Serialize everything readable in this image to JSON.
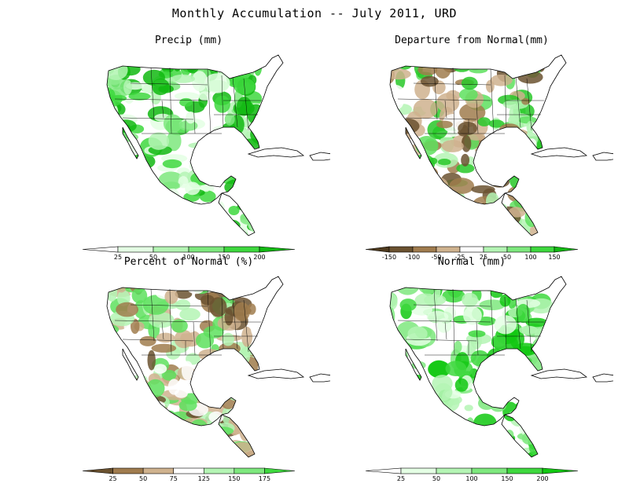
{
  "title": "Monthly Accumulation -- July 2011, URD",
  "panels": [
    {
      "id": "precip",
      "title": "Precip (mm)",
      "palette": [
        "#e4ffe4",
        "#b4f4b4",
        "#7ee87e",
        "#3ed83e",
        "#12b812"
      ],
      "colorbar": {
        "ticks": [
          "25",
          "50",
          "100",
          "150",
          "200"
        ],
        "colors": [
          "#ffffff",
          "#e4ffe4",
          "#b4f4b4",
          "#7ee87e",
          "#3ed83e",
          "#12b812"
        ]
      }
    },
    {
      "id": "departure",
      "title": "Departure from Normal(mm)",
      "palette": [
        "#6b5230",
        "#a07c4e",
        "#cfb28e",
        "#ffffff",
        "#b4f4b4",
        "#5ee05e",
        "#28c828"
      ],
      "colorbar": {
        "ticks": [
          "-150",
          "-100",
          "-50",
          "-25",
          "25",
          "50",
          "100",
          "150"
        ],
        "colors": [
          "#4e3a1e",
          "#6b5230",
          "#a07c4e",
          "#cfb28e",
          "#ffffff",
          "#b4f4b4",
          "#7ee87e",
          "#3ed83e",
          "#12b812"
        ]
      }
    },
    {
      "id": "percent",
      "title": "Percent of Normal (%)",
      "palette": [
        "#6b5230",
        "#a07c4e",
        "#cfb28e",
        "#ffffff",
        "#b4f4b4",
        "#5ee05e"
      ],
      "colorbar": {
        "ticks": [
          "25",
          "50",
          "75",
          "125",
          "150",
          "175"
        ],
        "colors": [
          "#6b5230",
          "#a07c4e",
          "#cfb28e",
          "#ffffff",
          "#b4f4b4",
          "#7ee87e",
          "#3ed83e"
        ]
      }
    },
    {
      "id": "normal",
      "title": "Normal (mm)",
      "palette": [
        "#e4ffe4",
        "#b4f4b4",
        "#7ee87e",
        "#3ed83e",
        "#12c812"
      ],
      "colorbar": {
        "ticks": [
          "25",
          "50",
          "100",
          "150",
          "200"
        ],
        "colors": [
          "#ffffff",
          "#e4ffe4",
          "#b4f4b4",
          "#7ee87e",
          "#3ed83e",
          "#12c812"
        ]
      }
    }
  ]
}
